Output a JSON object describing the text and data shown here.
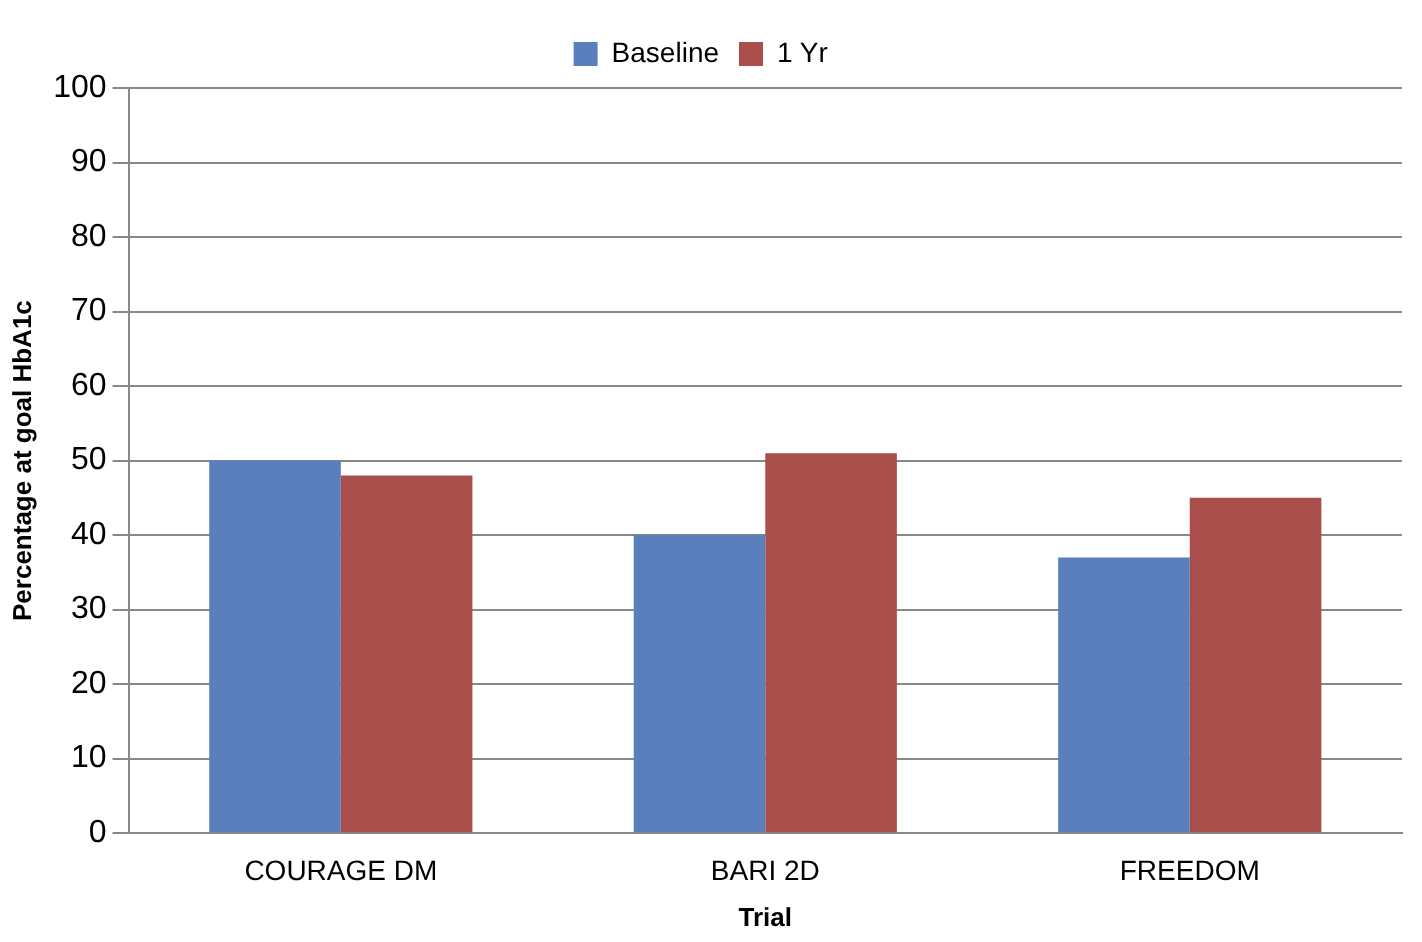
{
  "chart_data": {
    "type": "bar",
    "xlabel": "Trial",
    "ylabel": "Percentage at goal HbA1c",
    "categories": [
      "COURAGE DM",
      "BARI 2D",
      "FREEDOM"
    ],
    "series": [
      {
        "name": "Baseline",
        "color": "#5b7fbd",
        "values": [
          50,
          40,
          37
        ]
      },
      {
        "name": "1 Yr",
        "color": "#aa4e4c",
        "values": [
          48,
          51,
          45
        ]
      }
    ],
    "ylim": [
      0,
      100
    ],
    "yticks": [
      0,
      10,
      20,
      30,
      40,
      50,
      60,
      70,
      80,
      90,
      100
    ],
    "grid": "y",
    "legend": "top"
  }
}
